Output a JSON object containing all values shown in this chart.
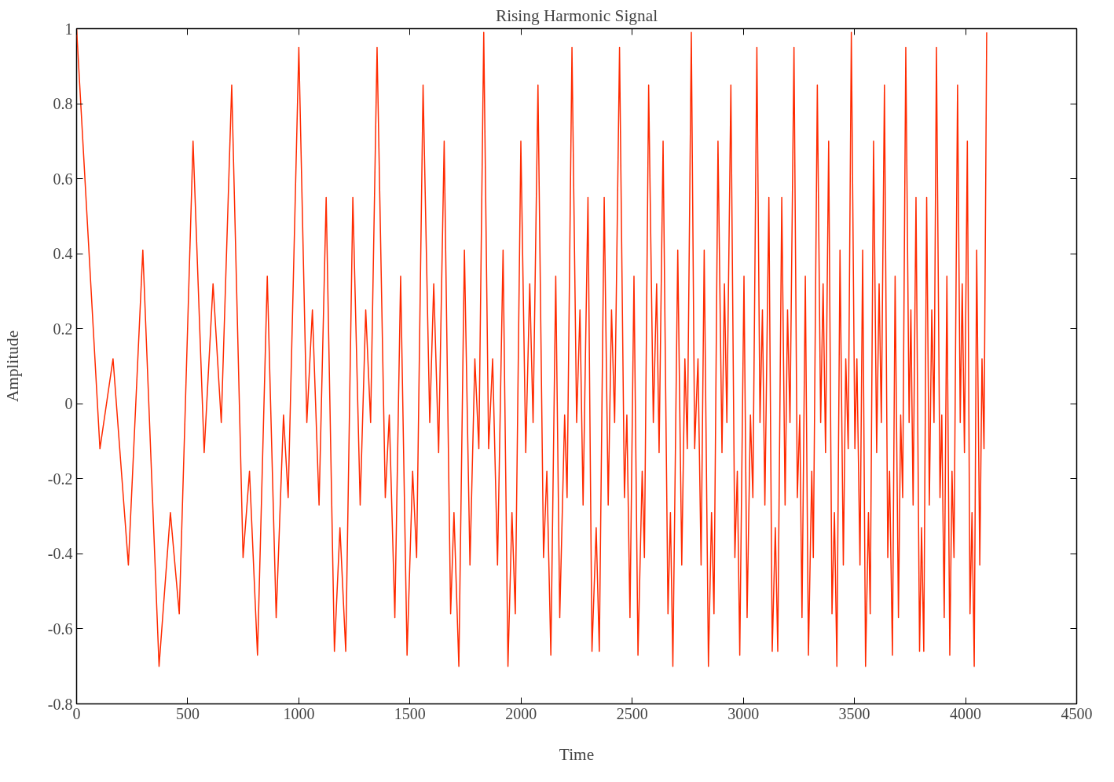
{
  "chart_data": {
    "type": "line",
    "title": "Rising Harmonic Signal",
    "xlabel": "Time",
    "ylabel": "Amplitude",
    "xlim": [
      0,
      4500
    ],
    "ylim": [
      -0.8,
      1
    ],
    "xticks": [
      0,
      500,
      1000,
      1500,
      2000,
      2500,
      3000,
      3500,
      4000,
      4500
    ],
    "yticks": [
      -0.8,
      -0.6,
      -0.4,
      -0.2,
      0,
      0.2,
      0.4,
      0.6,
      0.8,
      1
    ],
    "grid": false,
    "marker": "none",
    "line_style": "solid",
    "series": [
      {
        "color": "#ff2a00",
        "x": [
          0,
          105,
          164,
          233,
          298,
          371,
          422,
          462,
          524,
          574,
          614,
          651,
          698,
          749,
          778,
          814,
          858,
          898,
          931,
          952,
          1000,
          1036,
          1061,
          1091,
          1123,
          1160,
          1185,
          1211,
          1243,
          1276,
          1301,
          1323,
          1352,
          1389,
          1407,
          1432,
          1458,
          1487,
          1512,
          1530,
          1559,
          1589,
          1607,
          1629,
          1654,
          1683,
          1698,
          1720,
          1745,
          1770,
          1792,
          1810,
          1832,
          1854,
          1872,
          1894,
          1919,
          1941,
          1959,
          1974,
          1999,
          2021,
          2039,
          2054,
          2076,
          2101,
          2116,
          2134,
          2156,
          2174,
          2196,
          2207,
          2229,
          2250,
          2265,
          2279,
          2301,
          2319,
          2338,
          2352,
          2374,
          2392,
          2407,
          2421,
          2443,
          2465,
          2476,
          2490,
          2508,
          2526,
          2545,
          2555,
          2574,
          2595,
          2610,
          2621,
          2639,
          2661,
          2672,
          2683,
          2705,
          2723,
          2737,
          2748,
          2766,
          2781,
          2796,
          2810,
          2824,
          2843,
          2857,
          2868,
          2886,
          2904,
          2915,
          2926,
          2944,
          2962,
          2973,
          2984,
          3003,
          3017,
          3032,
          3043,
          3061,
          3075,
          3086,
          3097,
          3115,
          3130,
          3144,
          3155,
          3173,
          3188,
          3199,
          3210,
          3228,
          3243,
          3254,
          3264,
          3279,
          3293,
          3308,
          3315,
          3333,
          3348,
          3359,
          3370,
          3384,
          3399,
          3410,
          3421,
          3435,
          3450,
          3461,
          3472,
          3486,
          3502,
          3511,
          3525,
          3537,
          3550,
          3563,
          3571,
          3586,
          3600,
          3611,
          3621,
          3635,
          3650,
          3658,
          3671,
          3683,
          3698,
          3708,
          3717,
          3731,
          3746,
          3754,
          3764,
          3777,
          3793,
          3802,
          3812,
          3825,
          3837,
          3848,
          3858,
          3869,
          3885,
          3893,
          3904,
          3916,
          3929,
          3939,
          3948,
          3964,
          3976,
          3985,
          3995,
          4008,
          4020,
          4029,
          4039,
          4050,
          4064,
          4074,
          4083,
          4095
        ],
        "values": [
          1.0,
          -0.12,
          0.12,
          -0.43,
          0.41,
          -0.7,
          -0.29,
          -0.56,
          0.7,
          -0.13,
          0.32,
          -0.05,
          0.85,
          -0.41,
          -0.18,
          -0.67,
          0.34,
          -0.57,
          -0.03,
          -0.25,
          0.95,
          -0.05,
          0.25,
          -0.27,
          0.55,
          -0.66,
          -0.33,
          -0.66,
          0.55,
          -0.27,
          0.25,
          -0.05,
          0.95,
          -0.25,
          -0.03,
          -0.57,
          0.34,
          -0.67,
          -0.18,
          -0.41,
          0.85,
          -0.05,
          0.32,
          -0.13,
          0.7,
          -0.56,
          -0.29,
          -0.7,
          0.41,
          -0.43,
          0.12,
          -0.12,
          0.99,
          -0.12,
          0.12,
          -0.43,
          0.41,
          -0.7,
          -0.29,
          -0.56,
          0.7,
          -0.13,
          0.32,
          -0.05,
          0.85,
          -0.41,
          -0.18,
          -0.67,
          0.34,
          -0.57,
          -0.03,
          -0.25,
          0.95,
          -0.05,
          0.25,
          -0.27,
          0.55,
          -0.66,
          -0.33,
          -0.66,
          0.55,
          -0.27,
          0.25,
          -0.05,
          0.95,
          -0.25,
          -0.03,
          -0.57,
          0.34,
          -0.67,
          -0.18,
          -0.41,
          0.85,
          -0.05,
          0.32,
          -0.13,
          0.7,
          -0.56,
          -0.29,
          -0.7,
          0.41,
          -0.43,
          0.12,
          -0.12,
          0.99,
          -0.12,
          0.12,
          -0.43,
          0.41,
          -0.7,
          -0.29,
          -0.56,
          0.7,
          -0.13,
          0.32,
          -0.05,
          0.85,
          -0.41,
          -0.18,
          -0.67,
          0.34,
          -0.57,
          -0.03,
          -0.25,
          0.95,
          -0.05,
          0.25,
          -0.27,
          0.55,
          -0.66,
          -0.33,
          -0.66,
          0.55,
          -0.27,
          0.25,
          -0.05,
          0.95,
          -0.25,
          -0.03,
          -0.57,
          0.34,
          -0.67,
          -0.18,
          -0.41,
          0.85,
          -0.05,
          0.32,
          -0.13,
          0.7,
          -0.56,
          -0.29,
          -0.7,
          0.41,
          -0.43,
          0.12,
          -0.12,
          0.99,
          -0.12,
          0.12,
          -0.43,
          0.41,
          -0.7,
          -0.29,
          -0.56,
          0.7,
          -0.13,
          0.32,
          -0.05,
          0.85,
          -0.41,
          -0.18,
          -0.67,
          0.34,
          -0.57,
          -0.03,
          -0.25,
          0.95,
          -0.05,
          0.25,
          -0.27,
          0.55,
          -0.66,
          -0.33,
          -0.66,
          0.55,
          -0.27,
          0.25,
          -0.05,
          0.95,
          -0.25,
          -0.03,
          -0.57,
          0.34,
          -0.67,
          -0.18,
          -0.41,
          0.85,
          -0.05,
          0.32,
          -0.13,
          0.7,
          -0.56,
          -0.29,
          -0.7,
          0.41,
          -0.43,
          0.12,
          -0.12,
          0.99
        ]
      }
    ]
  }
}
